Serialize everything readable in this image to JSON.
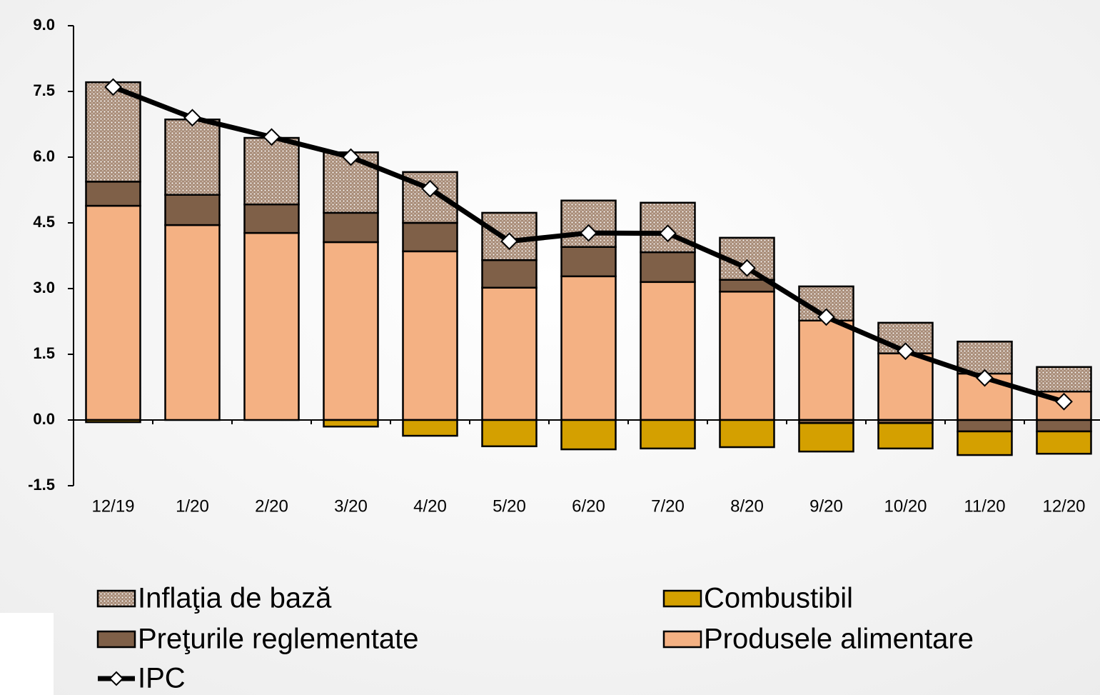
{
  "chart_data": {
    "type": "bar",
    "stacked": true,
    "categories": [
      "12/19",
      "1/20",
      "2/20",
      "3/20",
      "4/20",
      "5/20",
      "6/20",
      "7/20",
      "8/20",
      "9/20",
      "10/20",
      "11/20",
      "12/20"
    ],
    "series": [
      {
        "name": "Produsele alimentare",
        "color": "#f4b183",
        "values": [
          4.89,
          4.45,
          4.27,
          4.06,
          3.85,
          3.02,
          3.28,
          3.15,
          2.93,
          2.27,
          1.52,
          1.06,
          0.65
        ]
      },
      {
        "name": "Preţurile reglementate",
        "color": "#7f6048",
        "values": [
          0.55,
          0.69,
          0.65,
          0.67,
          0.65,
          0.63,
          0.67,
          0.68,
          0.27,
          -0.07,
          -0.07,
          -0.26,
          -0.26
        ]
      },
      {
        "name": "Inflaţia de bază",
        "color": "#a88c78",
        "pattern": "dots",
        "values": [
          2.27,
          1.72,
          1.52,
          1.38,
          1.16,
          1.08,
          1.06,
          1.13,
          0.96,
          0.78,
          0.7,
          0.73,
          0.56
        ]
      },
      {
        "name": "Combustibil",
        "color": "#d4a000",
        "values": [
          -0.05,
          0,
          0,
          -0.15,
          -0.36,
          -0.6,
          -0.67,
          -0.65,
          -0.62,
          -0.65,
          -0.58,
          -0.54,
          -0.51
        ]
      },
      {
        "name": "IPC",
        "type": "line",
        "color": "#000000",
        "values": [
          7.6,
          6.9,
          6.46,
          6.0,
          5.28,
          4.08,
          4.27,
          4.26,
          3.47,
          2.35,
          1.57,
          0.96,
          0.42
        ]
      }
    ],
    "ylim": [
      -1.5,
      9.0
    ],
    "yticks": [
      {
        "value": 9.0,
        "label": "9.0"
      },
      7.5,
      {
        "value": 6.0,
        "label": "6.0"
      },
      4.5,
      {
        "value": 3.0,
        "label": "3.0"
      },
      1.5,
      {
        "value": 0.0,
        "label": "0.0"
      },
      -1.5
    ]
  }
}
